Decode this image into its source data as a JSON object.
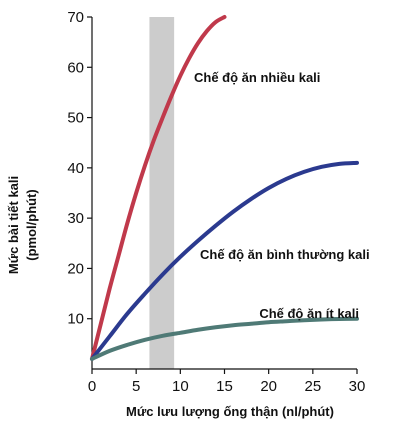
{
  "chart_data": {
    "type": "line",
    "xlabel": "Mức lưu lượng ống thận (nl/phút)",
    "ylabel_line1": "Mức bài tiết kali",
    "ylabel_line2": "(pmol/phút)",
    "xlim": [
      0,
      30
    ],
    "ylim": [
      0,
      70
    ],
    "xticks": [
      0,
      5,
      10,
      15,
      20,
      25,
      30
    ],
    "yticks": [
      10,
      20,
      30,
      40,
      50,
      60,
      70
    ],
    "grid": false,
    "shaded_band": {
      "x_from": 6.5,
      "x_to": 9.3,
      "color": "#cccccc"
    },
    "series": [
      {
        "name": "Chế độ ăn nhiều kali",
        "color": "#c0394b",
        "x": [
          0,
          1,
          2,
          3,
          4,
          5,
          6,
          7,
          8,
          9,
          10,
          11,
          12,
          13,
          14,
          15
        ],
        "y": [
          2,
          9,
          16,
          22.5,
          29,
          35,
          40.5,
          45.5,
          50,
          54.3,
          58.3,
          61.8,
          64.8,
          67.2,
          69,
          70
        ]
      },
      {
        "name": "Chế độ ăn bình thường kali",
        "color": "#2b3a8f",
        "x": [
          0,
          2,
          4,
          6,
          8,
          10,
          12,
          14,
          16,
          18,
          20,
          22,
          24,
          26,
          28,
          30
        ],
        "y": [
          2,
          6.5,
          11,
          15,
          18.8,
          22.3,
          25.5,
          28.5,
          31.3,
          33.8,
          36,
          37.8,
          39.2,
          40.2,
          40.8,
          41
        ]
      },
      {
        "name": "Chế độ ăn ít kali",
        "color": "#4f7a76",
        "x": [
          0,
          2,
          4,
          6,
          8,
          10,
          12,
          14,
          16,
          18,
          20,
          22,
          24,
          26,
          28,
          30
        ],
        "y": [
          2,
          3.6,
          4.8,
          5.8,
          6.6,
          7.2,
          7.8,
          8.3,
          8.7,
          9.0,
          9.3,
          9.5,
          9.7,
          9.85,
          9.95,
          10
        ]
      }
    ]
  }
}
